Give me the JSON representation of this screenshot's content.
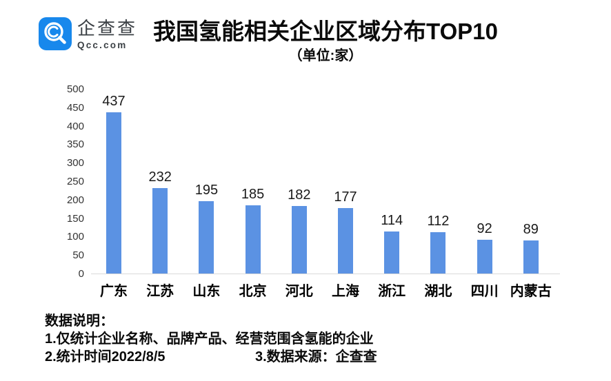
{
  "header": {
    "brand_name": "企查查",
    "brand_domain": "Qcc.com",
    "logo_icon": "magnifier-icon",
    "title": "我国氢能相关企业区域分布TOP10",
    "subtitle": "（单位:家）"
  },
  "chart_data": {
    "type": "bar",
    "title": "我国氢能相关企业区域分布TOP10",
    "unit_label": "（单位:家）",
    "categories": [
      "广东",
      "江苏",
      "山东",
      "北京",
      "河北",
      "上海",
      "浙江",
      "湖北",
      "四川",
      "内蒙古"
    ],
    "values": [
      437,
      232,
      195,
      185,
      182,
      177,
      114,
      112,
      92,
      89
    ],
    "xlabel": "",
    "ylabel": "",
    "ylim": [
      0,
      500
    ],
    "yticks": [
      0,
      50,
      100,
      150,
      200,
      250,
      300,
      350,
      400,
      450,
      500
    ],
    "grid": false,
    "legend": false,
    "value_labels": true,
    "bar_color": "#5B92E3"
  },
  "footer": {
    "heading": "数据说明：",
    "note1": "1.仅统计企业名称、品牌产品、经营范围含氢能的企业",
    "note2": "2.统计时间2022/8/5",
    "note3": "3.数据来源：企查查"
  },
  "colors": {
    "logo_blue": "#1888EC",
    "baseline": "#D9D9D9",
    "bar": "#5B92E3"
  }
}
